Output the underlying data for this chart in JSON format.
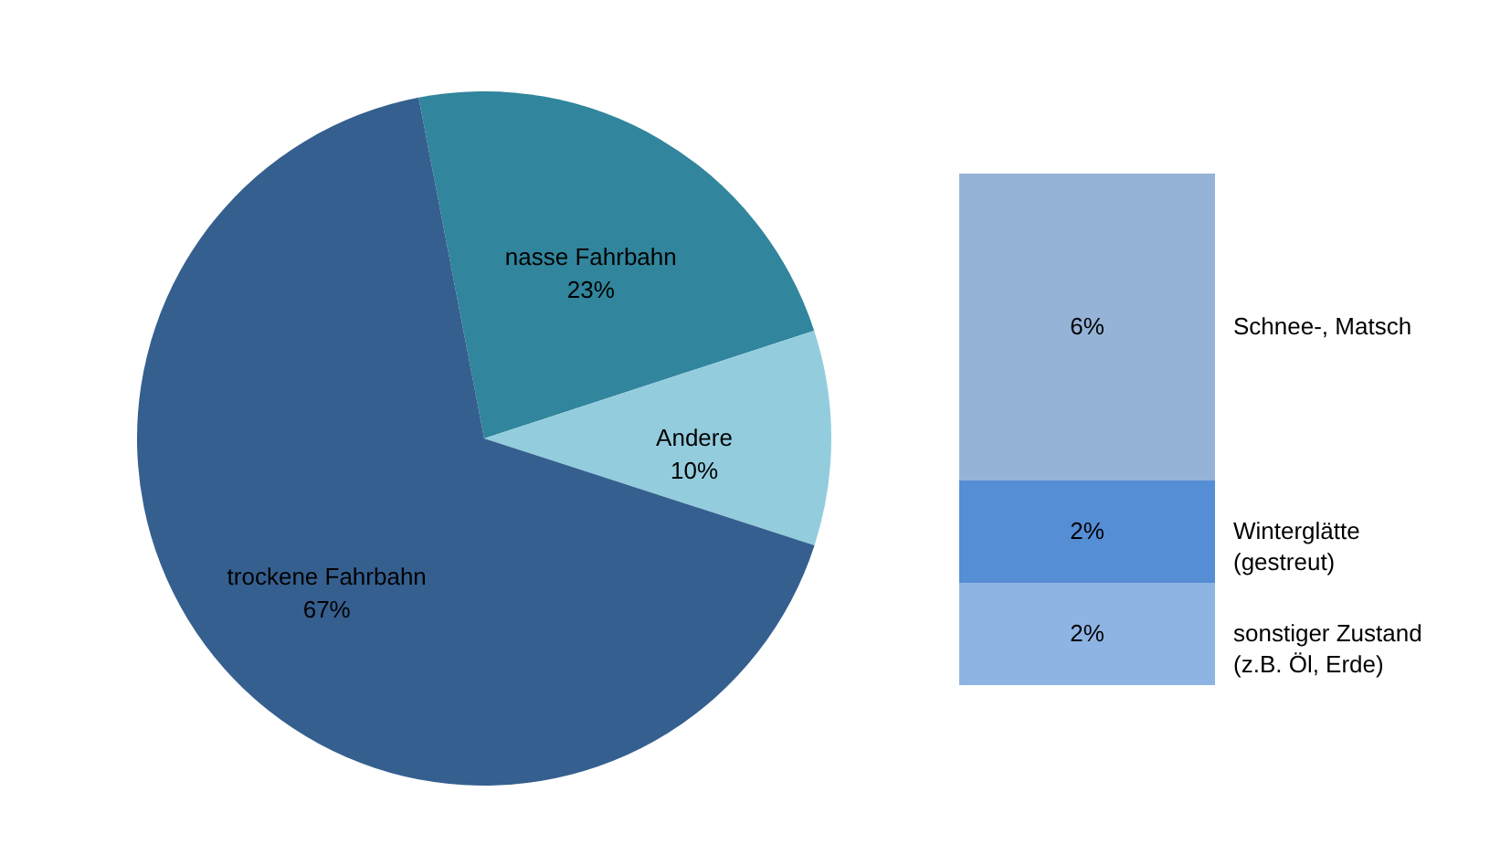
{
  "chart_data": [
    {
      "type": "pie",
      "categories": [
        "nasse Fahrbahn",
        "Andere",
        "trockene Fahrbahn"
      ],
      "values": [
        23,
        10,
        67
      ],
      "colors": [
        "#31859c",
        "#93cddd",
        "#355f8f"
      ],
      "value_labels": [
        "23%",
        "10%",
        "67%"
      ],
      "legend": false
    },
    {
      "type": "bar",
      "stacked": true,
      "categories": [
        null
      ],
      "legend": false,
      "series": [
        {
          "name": "sonstiger Zustand (z.B. Öl, Erde)",
          "color": "#8eb4e3",
          "values": [
            2
          ],
          "value_labels": [
            "2%"
          ]
        },
        {
          "name": "Winterglätte (gestreut)",
          "color": "#558ed5",
          "values": [
            2
          ],
          "value_labels": [
            "2%"
          ]
        },
        {
          "name": "Schnee-, Matsch",
          "color": "#95b3d7",
          "values": [
            6
          ],
          "value_labels": [
            "6%"
          ]
        }
      ]
    }
  ]
}
